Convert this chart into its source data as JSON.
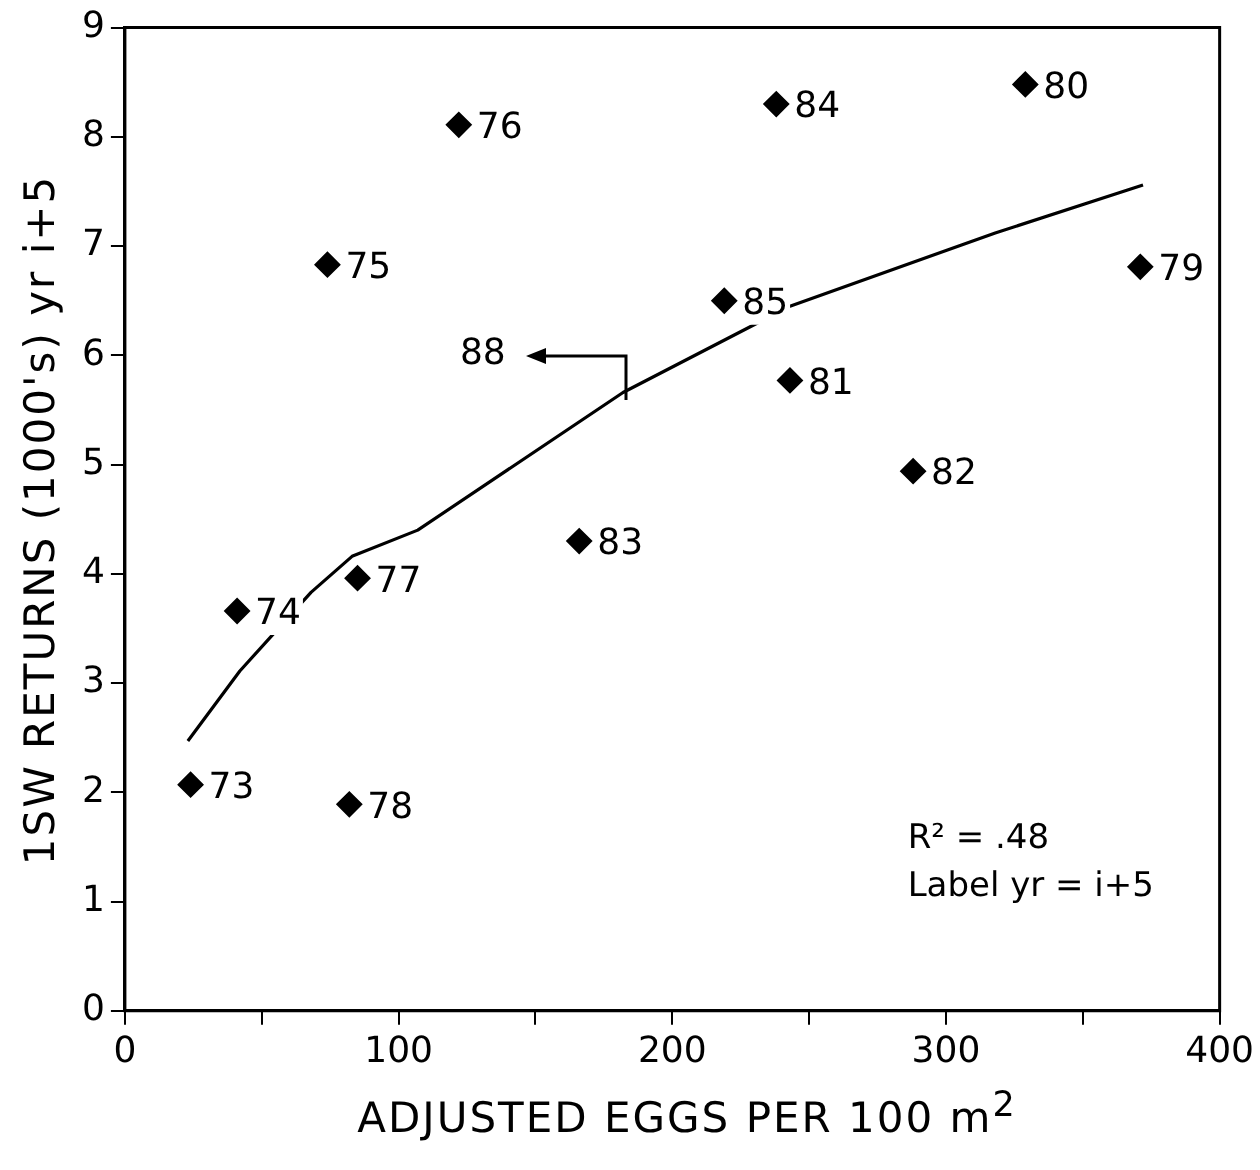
{
  "chart_data": {
    "type": "scatter",
    "xlabel": "ADJUSTED EGGS PER 100 m$^{2}$",
    "ylabel": "1SW RETURNS (1000's) yr i+5",
    "xlim": [
      0,
      400
    ],
    "xticks": [
      0,
      {
        "value": 50,
        "label": null
      },
      100,
      {
        "value": 150,
        "label": null
      },
      200,
      {
        "value": 250,
        "label": null
      },
      300,
      {
        "value": 350,
        "label": null
      },
      400
    ],
    "ylim": [
      0,
      9
    ],
    "yticks": [
      0,
      1,
      2,
      3,
      4,
      5,
      6,
      7,
      8,
      9
    ],
    "grid": false,
    "legend": false,
    "marker": "diamond",
    "series": [
      {
        "color": "#000000",
        "x": [
          24,
          41,
          74,
          122,
          85,
          82,
          371,
          329,
          243,
          288,
          166,
          238,
          219
        ],
        "values": [
          2.07,
          3.66,
          6.83,
          8.11,
          3.96,
          1.89,
          6.81,
          8.48,
          5.77,
          4.94,
          4.3,
          8.3,
          6.5
        ]
      },
      {
        "type": "line",
        "color": "#000000",
        "marker": "none",
        "x": [
          23,
          42,
          68,
          83,
          107,
          182,
          243,
          318,
          372
        ],
        "values": [
          2.47,
          3.11,
          3.83,
          4.16,
          4.4,
          5.66,
          6.45,
          7.12,
          7.56
        ]
      }
    ],
    "annotations": [
      {
        "text": "73",
        "x": 24,
        "y": 2.07
      },
      {
        "text": "74",
        "x": 41,
        "y": 3.66
      },
      {
        "text": "75",
        "x": 74,
        "y": 6.83
      },
      {
        "text": "76",
        "x": 122,
        "y": 8.11
      },
      {
        "text": "77",
        "x": 85,
        "y": 3.96
      },
      {
        "text": "78",
        "x": 82,
        "y": 1.89
      },
      {
        "text": "79",
        "x": 371,
        "y": 6.81
      },
      {
        "text": "80",
        "x": 329,
        "y": 8.48
      },
      {
        "text": "81",
        "x": 243,
        "y": 5.77
      },
      {
        "text": "82",
        "x": 288,
        "y": 4.94
      },
      {
        "text": "83",
        "x": 166,
        "y": 4.3
      },
      {
        "text": "84",
        "x": 238,
        "y": 8.3
      },
      {
        "text": "85",
        "x": 219,
        "y": 6.5
      },
      {
        "text": "88",
        "x": 183,
        "y": 5.6
      },
      "R² = .48",
      "Label yr = i+5"
    ]
  }
}
